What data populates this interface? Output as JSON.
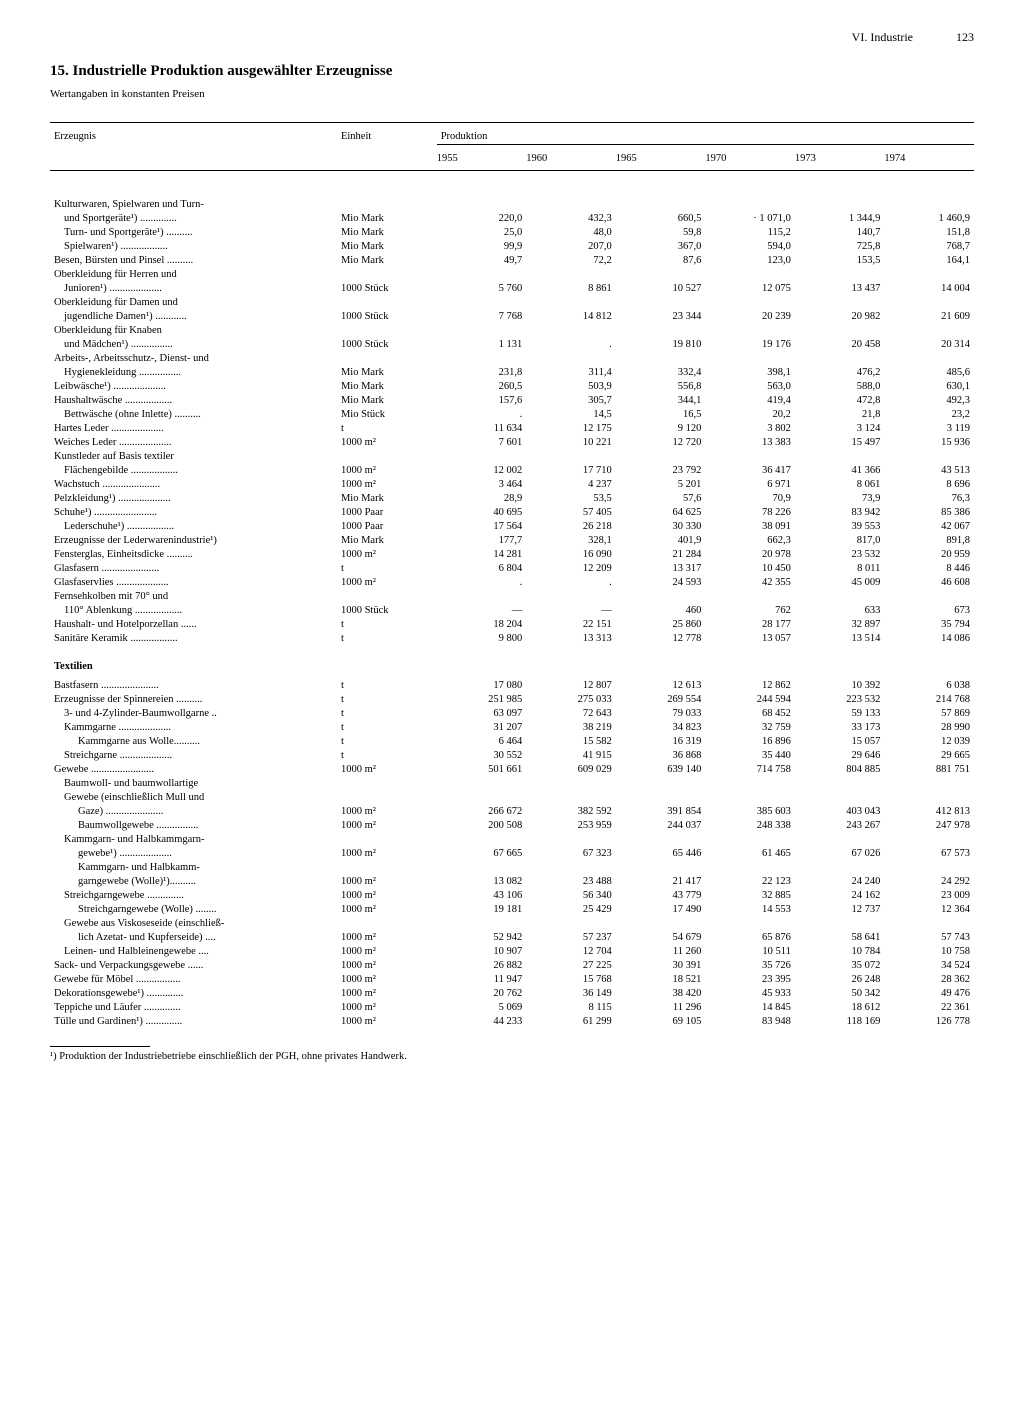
{
  "header": {
    "section": "VI. Industrie",
    "page": "123"
  },
  "title_no": "15.",
  "title": "Industrielle Produktion ausgewählter Erzeugnisse",
  "subtitle": "Wertangaben in konstanten Preisen",
  "col_headers": {
    "product": "Erzeugnis",
    "unit": "Einheit",
    "production": "Produktion",
    "years": [
      "1955",
      "1960",
      "1965",
      "1970",
      "1973",
      "1974"
    ]
  },
  "rows": [
    {
      "type": "spacer"
    },
    {
      "label": "Kulturwaren, Spielwaren und Turn-",
      "unit": "",
      "vals": [
        "",
        "",
        "",
        "",
        "",
        ""
      ]
    },
    {
      "label": "und Sportgeräte¹) ..............",
      "indent": 1,
      "unit": "Mio Mark",
      "vals": [
        "220,0",
        "432,3",
        "660,5",
        "· 1 071,0",
        "1 344,9",
        "1 460,9"
      ]
    },
    {
      "label": "Turn- und Sportgeräte¹) ..........",
      "indent": 1,
      "unit": "Mio Mark",
      "vals": [
        "25,0",
        "48,0",
        "59,8",
        "115,2",
        "140,7",
        "151,8"
      ]
    },
    {
      "label": "Spielwaren¹) ..................",
      "indent": 1,
      "unit": "Mio Mark",
      "vals": [
        "99,9",
        "207,0",
        "367,0",
        "594,0",
        "725,8",
        "768,7"
      ]
    },
    {
      "label": "Besen, Bürsten und Pinsel ..........",
      "unit": "Mio Mark",
      "vals": [
        "49,7",
        "72,2",
        "87,6",
        "123,0",
        "153,5",
        "164,1"
      ]
    },
    {
      "label": "Oberkleidung für Herren und",
      "unit": "",
      "vals": [
        "",
        "",
        "",
        "",
        "",
        ""
      ]
    },
    {
      "label": "Junioren¹) ....................",
      "indent": 1,
      "unit": "1000 Stück",
      "vals": [
        "5 760",
        "8 861",
        "10 527",
        "12 075",
        "13 437",
        "14 004"
      ]
    },
    {
      "label": "Oberkleidung für Damen und",
      "unit": "",
      "vals": [
        "",
        "",
        "",
        "",
        "",
        ""
      ]
    },
    {
      "label": "jugendliche Damen¹) ............",
      "indent": 1,
      "unit": "1000 Stück",
      "vals": [
        "7 768",
        "14 812",
        "23 344",
        "20 239",
        "20 982",
        "21 609"
      ]
    },
    {
      "label": "Oberkleidung für Knaben",
      "unit": "",
      "vals": [
        "",
        "",
        "",
        "",
        "",
        ""
      ]
    },
    {
      "label": "und Mädchen¹) ................",
      "indent": 1,
      "unit": "1000 Stück",
      "vals": [
        "1 131",
        ".",
        "19 810",
        "19 176",
        "20 458",
        "20 314"
      ]
    },
    {
      "label": "Arbeits-, Arbeitsschutz-, Dienst- und",
      "unit": "",
      "vals": [
        "",
        "",
        "",
        "",
        "",
        ""
      ]
    },
    {
      "label": "Hygienekleidung ................",
      "indent": 1,
      "unit": "Mio Mark",
      "vals": [
        "231,8",
        "311,4",
        "332,4",
        "398,1",
        "476,2",
        "485,6"
      ]
    },
    {
      "label": "Leibwäsche¹) ....................",
      "unit": "Mio Mark",
      "vals": [
        "260,5",
        "503,9",
        "556,8",
        "563,0",
        "588,0",
        "630,1"
      ]
    },
    {
      "label": "Haushaltwäsche ..................",
      "unit": "Mio Mark",
      "vals": [
        "157,6",
        "305,7",
        "344,1",
        "419,4",
        "472,8",
        "492,3"
      ]
    },
    {
      "label": "Bettwäsche (ohne Inlette) ..........",
      "indent": 1,
      "unit": "Mio Stück",
      "vals": [
        ".",
        "14,5",
        "16,5",
        "20,2",
        "21,8",
        "23,2"
      ]
    },
    {
      "label": "Hartes Leder ....................",
      "unit": "t",
      "vals": [
        "11 634",
        "12 175",
        "9 120",
        "3 802",
        "3 124",
        "3 119"
      ]
    },
    {
      "label": "Weiches Leder ....................",
      "unit": "1000 m²",
      "vals": [
        "7 601",
        "10 221",
        "12 720",
        "13 383",
        "15 497",
        "15 936"
      ]
    },
    {
      "label": "Kunstleder auf Basis textiler",
      "unit": "",
      "vals": [
        "",
        "",
        "",
        "",
        "",
        ""
      ]
    },
    {
      "label": "Flächengebilde ..................",
      "indent": 1,
      "unit": "1000 m²",
      "vals": [
        "12 002",
        "17 710",
        "23 792",
        "36 417",
        "41 366",
        "43 513"
      ]
    },
    {
      "label": "Wachstuch ......................",
      "unit": "1000 m²",
      "vals": [
        "3 464",
        "4 237",
        "5 201",
        "6 971",
        "8 061",
        "8 696"
      ]
    },
    {
      "label": "Pelzkleidung¹) ....................",
      "unit": "Mio Mark",
      "vals": [
        "28,9",
        "53,5",
        "57,6",
        "70,9",
        "73,9",
        "76,3"
      ]
    },
    {
      "label": "Schuhe¹) ........................",
      "unit": "1000 Paar",
      "vals": [
        "40 695",
        "57 405",
        "64 625",
        "78 226",
        "83 942",
        "85 386"
      ]
    },
    {
      "label": "Lederschuhe¹) ..................",
      "indent": 1,
      "unit": "1000 Paar",
      "vals": [
        "17 564",
        "26 218",
        "30 330",
        "38 091",
        "39 553",
        "42 067"
      ]
    },
    {
      "label": "Erzeugnisse der Lederwarenindustrie¹)",
      "unit": "Mio Mark",
      "vals": [
        "177,7",
        "328,1",
        "401,9",
        "662,3",
        "817,0",
        "891,8"
      ]
    },
    {
      "label": "Fensterglas, Einheitsdicke ..........",
      "unit": "1000 m²",
      "vals": [
        "14 281",
        "16 090",
        "21 284",
        "20 978",
        "23 532",
        "20 959"
      ]
    },
    {
      "label": "Glasfasern ......................",
      "unit": "t",
      "vals": [
        "6 804",
        "12 209",
        "13 317",
        "10 450",
        "8 011",
        "8 446"
      ]
    },
    {
      "label": "Glasfaservlies ....................",
      "unit": "1000 m²",
      "vals": [
        ".",
        ".",
        "24 593",
        "42 355",
        "45 009",
        "46 608"
      ]
    },
    {
      "label": "Fernsehkolben mit 70° und",
      "unit": "",
      "vals": [
        "",
        "",
        "",
        "",
        "",
        ""
      ]
    },
    {
      "label": "110° Ablenkung ..................",
      "indent": 1,
      "unit": "1000 Stück",
      "vals": [
        "—",
        "—",
        "460",
        "762",
        "633",
        "673"
      ]
    },
    {
      "label": "Haushalt- und Hotelporzellan ......",
      "unit": "t",
      "vals": [
        "18 204",
        "22 151",
        "25 860",
        "28 177",
        "32 897",
        "35 794"
      ]
    },
    {
      "label": "Sanitäre Keramik ..................",
      "unit": "t",
      "vals": [
        "9 800",
        "13 313",
        "12 778",
        "13 057",
        "13 514",
        "14 086"
      ]
    },
    {
      "type": "section",
      "label": "Textilien"
    },
    {
      "label": "Bastfasern ......................",
      "unit": "t",
      "vals": [
        "17 080",
        "12 807",
        "12 613",
        "12 862",
        "10 392",
        "6 038"
      ]
    },
    {
      "label": "Erzeugnisse der Spinnereien ..........",
      "unit": "t",
      "vals": [
        "251 985",
        "275 033",
        "269 554",
        "244 594",
        "223 532",
        "214 768"
      ]
    },
    {
      "label": "3- und 4-Zylinder-Baumwollgarne ..",
      "indent": 1,
      "unit": "t",
      "vals": [
        "63 097",
        "72 643",
        "79 033",
        "68 452",
        "59 133",
        "57 869"
      ]
    },
    {
      "label": "Kammgarne ....................",
      "indent": 1,
      "unit": "t",
      "vals": [
        "31 207",
        "38 219",
        "34 823",
        "32 759",
        "33 173",
        "28 990"
      ]
    },
    {
      "label": "Kammgarne aus Wolle..........",
      "indent": 2,
      "unit": "t",
      "vals": [
        "6 464",
        "15 582",
        "16 319",
        "16 896",
        "15 057",
        "12 039"
      ]
    },
    {
      "label": "Streichgarne ....................",
      "indent": 1,
      "unit": "t",
      "vals": [
        "30 552",
        "41 915",
        "36 868",
        "35 440",
        "29 646",
        "29 665"
      ]
    },
    {
      "label": "Gewebe ........................",
      "unit": "1000 m²",
      "vals": [
        "501 661",
        "609 029",
        "639 140",
        "714 758",
        "804 885",
        "881 751"
      ]
    },
    {
      "label": "Baumwoll- und baumwollartige",
      "indent": 1,
      "unit": "",
      "vals": [
        "",
        "",
        "",
        "",
        "",
        ""
      ]
    },
    {
      "label": "Gewebe (einschließlich Mull und",
      "indent": 1,
      "unit": "",
      "vals": [
        "",
        "",
        "",
        "",
        "",
        ""
      ]
    },
    {
      "label": "Gaze) ......................",
      "indent": 2,
      "unit": "1000 m²",
      "vals": [
        "266 672",
        "382 592",
        "391 854",
        "385 603",
        "403 043",
        "412 813"
      ]
    },
    {
      "label": "Baumwollgewebe ................",
      "indent": 2,
      "unit": "1000 m²",
      "vals": [
        "200 508",
        "253 959",
        "244 037",
        "248 338",
        "243 267",
        "247 978"
      ]
    },
    {
      "label": "Kammgarn- und Halbkammgarn-",
      "indent": 1,
      "unit": "",
      "vals": [
        "",
        "",
        "",
        "",
        "",
        ""
      ]
    },
    {
      "label": "gewebe¹) ....................",
      "indent": 2,
      "unit": "1000 m²",
      "vals": [
        "67 665",
        "67 323",
        "65 446",
        "61 465",
        "67 026",
        "67 573"
      ]
    },
    {
      "label": "Kammgarn- und Halbkamm-",
      "indent": 2,
      "unit": "",
      "vals": [
        "",
        "",
        "",
        "",
        "",
        ""
      ]
    },
    {
      "label": "garngewebe (Wolle)¹)..........",
      "indent": 2,
      "unit": "1000 m²",
      "vals": [
        "13 082",
        "23 488",
        "21 417",
        "22 123",
        "24 240",
        "24 292"
      ]
    },
    {
      "label": "Streichgarngewebe ..............",
      "indent": 1,
      "unit": "1000 m²",
      "vals": [
        "43 106",
        "56 340",
        "43 779",
        "32 885",
        "24 162",
        "23 009"
      ]
    },
    {
      "label": "Streichgarngewebe (Wolle) ........",
      "indent": 2,
      "unit": "1000 m²",
      "vals": [
        "19 181",
        "25 429",
        "17 490",
        "14 553",
        "12 737",
        "12 364"
      ]
    },
    {
      "label": "Gewebe aus Viskoseseide (einschließ-",
      "indent": 1,
      "unit": "",
      "vals": [
        "",
        "",
        "",
        "",
        "",
        ""
      ]
    },
    {
      "label": "lich Azetat- und Kupferseide) ....",
      "indent": 2,
      "unit": "1000 m²",
      "vals": [
        "52 942",
        "57 237",
        "54 679",
        "65 876",
        "58 641",
        "57 743"
      ]
    },
    {
      "label": "Leinen- und Halbleinengewebe ....",
      "indent": 1,
      "unit": "1000 m²",
      "vals": [
        "10 907",
        "12 704",
        "11 260",
        "10 511",
        "10 784",
        "10 758"
      ]
    },
    {
      "label": "Sack- und Verpackungsgewebe ......",
      "unit": "1000 m²",
      "vals": [
        "26 882",
        "27 225",
        "30 391",
        "35 726",
        "35 072",
        "34 524"
      ]
    },
    {
      "label": "Gewebe für Möbel .................",
      "unit": "1000 m²",
      "vals": [
        "11 947",
        "15 768",
        "18 521",
        "23 395",
        "26 248",
        "28 362"
      ]
    },
    {
      "label": "Dekorationsgewebe¹) ..............",
      "unit": "1000 m²",
      "vals": [
        "20 762",
        "36 149",
        "38 420",
        "45 933",
        "50 342",
        "49 476"
      ]
    },
    {
      "label": "Teppiche und Läufer ..............",
      "unit": "1000 m²",
      "vals": [
        "5 069",
        "8 115",
        "11 296",
        "14 845",
        "18 612",
        "22 361"
      ]
    },
    {
      "label": "Tülle und Gardinen¹) ..............",
      "unit": "1000 m²",
      "vals": [
        "44 233",
        "61 299",
        "69 105",
        "83 948",
        "118 169",
        "126 778"
      ]
    }
  ],
  "footnote": "¹) Produktion der Industriebetriebe einschließlich der PGH, ohne privates Handwerk."
}
